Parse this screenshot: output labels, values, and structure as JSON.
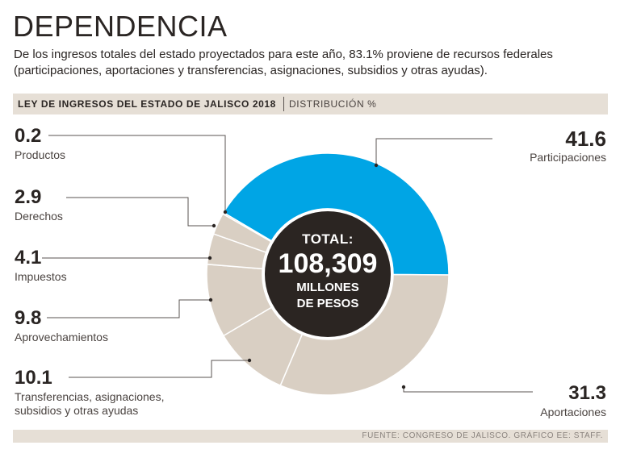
{
  "header": {
    "title": "DEPENDENCIA",
    "subtitle": "De los ingresos totales del estado proyectados para este año, 83.1% proviene de recursos federales (participaciones, aportaciones y transferencias, asignaciones, subsidios y otras ayudas)."
  },
  "band": {
    "title": "LEY DE INGRESOS DEL ESTADO DE JALISCO 2018",
    "subtitle": "DISTRIBUCIÓN %"
  },
  "center": {
    "line1": "TOTAL:",
    "line2": "108,309",
    "line3": "MILLONES",
    "line4": "DE PESOS"
  },
  "footer": {
    "source": "FUENTE: CONGRESO DE JALISCO. GRÁFICO EE: STAFF."
  },
  "colors": {
    "highlight": "#00a5e5",
    "slice": "#d9cfc3",
    "center": "#2b2522",
    "band": "#e6dfd6"
  },
  "chart_data": {
    "type": "pie",
    "series": [
      {
        "label": "Participaciones",
        "value": 41.6
      },
      {
        "label": "Aportaciones",
        "value": 31.3
      },
      {
        "label": "Transferencias, asignaciones, subsidios y otras ayudas",
        "value": 10.1
      },
      {
        "label": "Aprovechamientos",
        "value": 9.8
      },
      {
        "label": "Impuestos",
        "value": 4.1
      },
      {
        "label": "Derechos",
        "value": 2.9
      },
      {
        "label": "Productos",
        "value": 0.2
      }
    ],
    "value_text": [
      "41.6",
      "31.3",
      "10.1",
      "9.8",
      "4.1",
      "2.9",
      "0.2"
    ]
  }
}
